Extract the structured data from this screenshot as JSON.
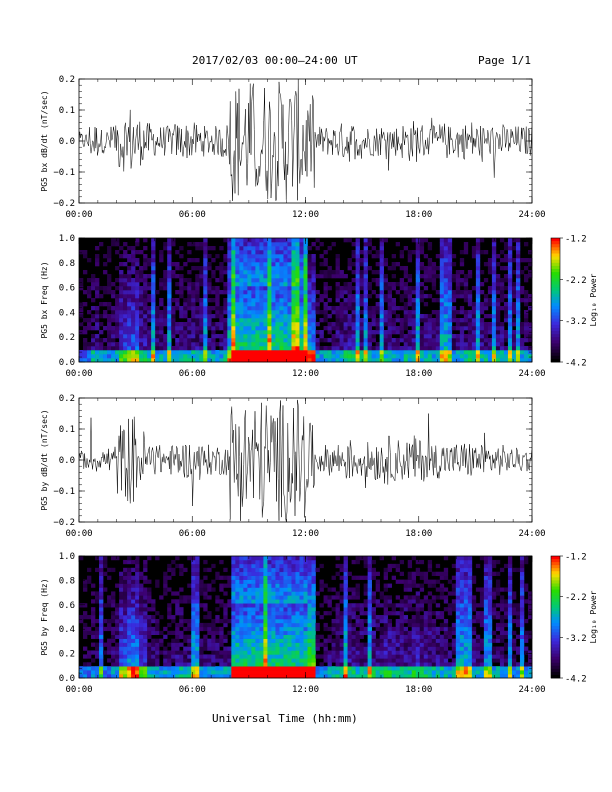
{
  "header": {
    "title": "2017/02/03  00:00–24:00 UT",
    "page": "Page 1/1"
  },
  "xlabel": "Universal Time (hh:mm)",
  "colors": {
    "frame": "#000000",
    "spectrogram_background": "#000000"
  },
  "chart_data": [
    {
      "type": "line",
      "title": "",
      "ylabel": "PG5 bx dB/dt (nT/sec)",
      "xlim": [
        0,
        24
      ],
      "ylim": [
        -0.2,
        0.2
      ],
      "x_ticks": [
        "00:00",
        "06:00",
        "12:00",
        "18:00",
        "24:00"
      ],
      "y_ticks": [
        "0.2",
        "0.1",
        "0.0",
        "−0.1",
        "−0.2"
      ],
      "series": [
        {
          "values": [
            0.03,
            0.06,
            0.04,
            0.05,
            0.1,
            0.12,
            0.08,
            0.06,
            0.05,
            0.05,
            0.06,
            0.06,
            0.06,
            0.05,
            0.05,
            0.06,
            0.2,
            0.2,
            0.2,
            0.2,
            0.2,
            0.2,
            0.2,
            0.2,
            0.15,
            0.05,
            0.05,
            0.06,
            0.07,
            0.06,
            0.05,
            0.05,
            0.06,
            0.05,
            0.06,
            0.07,
            0.06,
            0.05,
            0.06,
            0.05,
            0.06,
            0.07,
            0.06,
            0.05,
            0.06,
            0.05,
            0.05,
            0.05
          ]
        }
      ]
    },
    {
      "type": "heatmap",
      "title": "",
      "ylabel": "PG5 bx Freq (Hz)",
      "xlim": [
        0,
        24
      ],
      "ylim": [
        0.0,
        1.0
      ],
      "x_ticks": [
        "00:00",
        "06:00",
        "12:00",
        "18:00",
        "24:00"
      ],
      "y_ticks": [
        "1.0",
        "0.8",
        "0.6",
        "0.4",
        "0.2",
        "0.0"
      ],
      "colorbar": {
        "label": "Log₁₀ Power",
        "ticks": [
          "-1.2",
          "-2.2",
          "-3.2",
          "-4.2"
        ],
        "range": [
          -4.2,
          -1.2
        ]
      }
    },
    {
      "type": "line",
      "title": "",
      "ylabel": "PG5 by dB/dt (nT/sec)",
      "xlim": [
        0,
        24
      ],
      "ylim": [
        -0.2,
        0.2
      ],
      "x_ticks": [
        "00:00",
        "06:00",
        "12:00",
        "18:00",
        "24:00"
      ],
      "y_ticks": [
        "0.2",
        "0.1",
        "0.0",
        "−0.1",
        "−0.2"
      ],
      "series": [
        {
          "values": [
            0.03,
            0.04,
            0.03,
            0.05,
            0.12,
            0.15,
            0.1,
            0.06,
            0.05,
            0.05,
            0.06,
            0.06,
            0.05,
            0.05,
            0.05,
            0.05,
            0.2,
            0.2,
            0.2,
            0.2,
            0.2,
            0.2,
            0.2,
            0.2,
            0.12,
            0.04,
            0.05,
            0.06,
            0.07,
            0.06,
            0.06,
            0.07,
            0.08,
            0.07,
            0.07,
            0.08,
            0.07,
            0.06,
            0.06,
            0.05,
            0.06,
            0.06,
            0.05,
            0.05,
            0.05,
            0.04,
            0.04,
            0.04
          ]
        }
      ]
    },
    {
      "type": "heatmap",
      "title": "",
      "ylabel": "PG5 by Freq (Hz)",
      "xlim": [
        0,
        24
      ],
      "ylim": [
        0.0,
        1.0
      ],
      "x_ticks": [
        "00:00",
        "06:00",
        "12:00",
        "18:00",
        "24:00"
      ],
      "y_ticks": [
        "1.0",
        "0.8",
        "0.6",
        "0.4",
        "0.2",
        "0.0"
      ],
      "colorbar": {
        "label": "Log₁₀ Power",
        "ticks": [
          "-1.2",
          "-2.2",
          "-3.2",
          "-4.2"
        ],
        "range": [
          -4.2,
          -1.2
        ]
      }
    }
  ]
}
